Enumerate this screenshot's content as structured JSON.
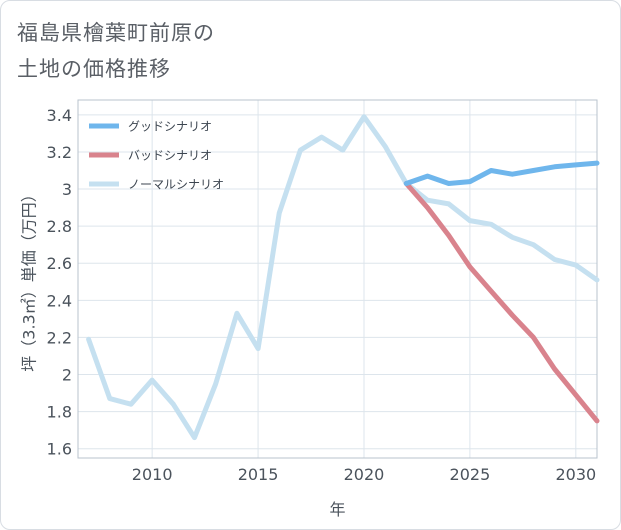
{
  "chart_data": {
    "type": "line",
    "title_lines": [
      "福島県檜葉町前原の",
      "土地の価格推移"
    ],
    "xlabel": "年",
    "ylabel": "坪（3.3㎡）単価（万円）",
    "xlim": [
      2006.5,
      2031
    ],
    "ylim": [
      1.55,
      3.48
    ],
    "xticks": [
      2010,
      2015,
      2020,
      2025,
      2030
    ],
    "xtick_labels": [
      "2010",
      "2015",
      "2020",
      "2025",
      "2030"
    ],
    "yticks": [
      1.6,
      1.8,
      2,
      2.2,
      2.4,
      2.6,
      2.8,
      3,
      3.2,
      3.4
    ],
    "ytick_labels": [
      "1.6",
      "1.8",
      "2",
      "2.2",
      "2.4",
      "2.6",
      "2.8",
      "3",
      "3.2",
      "3.4"
    ],
    "grid": true,
    "legend_position": "top-left",
    "series": [
      {
        "name": "ノーマルシナリオ",
        "color": "#c5e0f0",
        "x": [
          2007,
          2008,
          2009,
          2010,
          2011,
          2012,
          2013,
          2014,
          2015,
          2016,
          2017,
          2018,
          2019,
          2020,
          2021,
          2022,
          2023,
          2024,
          2025,
          2026,
          2027,
          2028,
          2029,
          2030,
          2031
        ],
        "y": [
          2.19,
          1.87,
          1.84,
          1.97,
          1.84,
          1.66,
          1.95,
          2.33,
          2.14,
          2.87,
          3.21,
          3.28,
          3.21,
          3.39,
          3.23,
          3.03,
          2.94,
          2.92,
          2.83,
          2.81,
          2.74,
          2.7,
          2.62,
          2.59,
          2.51
        ]
      },
      {
        "name": "バッドシナリオ",
        "color": "#d9838d",
        "x": [
          2022,
          2023,
          2024,
          2025,
          2026,
          2027,
          2028,
          2029,
          2030,
          2031
        ],
        "y": [
          3.03,
          2.9,
          2.75,
          2.58,
          2.45,
          2.32,
          2.2,
          2.03,
          1.89,
          1.75
        ]
      },
      {
        "name": "グッドシナリオ",
        "color": "#6fb6ec",
        "x": [
          2022,
          2023,
          2024,
          2025,
          2026,
          2027,
          2028,
          2029,
          2030,
          2031
        ],
        "y": [
          3.03,
          3.07,
          3.03,
          3.04,
          3.1,
          3.08,
          3.1,
          3.12,
          3.13,
          3.14
        ]
      }
    ],
    "legend_order": [
      "グッドシナリオ",
      "バッドシナリオ",
      "ノーマルシナリオ"
    ]
  }
}
